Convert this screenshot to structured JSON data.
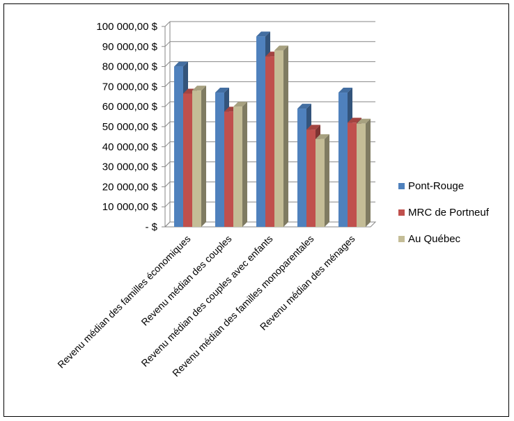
{
  "chart_data": {
    "type": "bar",
    "title": "",
    "xlabel": "",
    "ylabel": "",
    "ylim": [
      0,
      100000
    ],
    "y_ticks": [
      "-  $",
      "10 000,00 $",
      "20 000,00 $",
      "30 000,00 $",
      "40 000,00 $",
      "50 000,00 $",
      "60 000,00 $",
      "70 000,00 $",
      "80 000,00 $",
      "90 000,00 $",
      "100 000,00 $"
    ],
    "y_tick_values": [
      0,
      10000,
      20000,
      30000,
      40000,
      50000,
      60000,
      70000,
      80000,
      90000,
      100000
    ],
    "categories": [
      "Revenu médian des familles économiques",
      "Revenu médian des couples",
      "Revenu médian des couples avec enfants",
      "Revenu médian des familles monoparentales",
      "Revenu médian des ménages"
    ],
    "series": [
      {
        "name": "Pont-Rouge",
        "color": "#4F81BD",
        "values": [
          80000,
          67000,
          95000,
          59000,
          67000
        ]
      },
      {
        "name": "MRC de Portneuf",
        "color": "#C0504D",
        "values": [
          66500,
          57500,
          85000,
          48500,
          52000
        ]
      },
      {
        "name": "Au Québec",
        "color": "#C4BD97",
        "values": [
          68000,
          60000,
          88000,
          43800,
          51500
        ]
      }
    ],
    "legend_position": "right",
    "grid": true,
    "style": "3d-clustered-column"
  }
}
